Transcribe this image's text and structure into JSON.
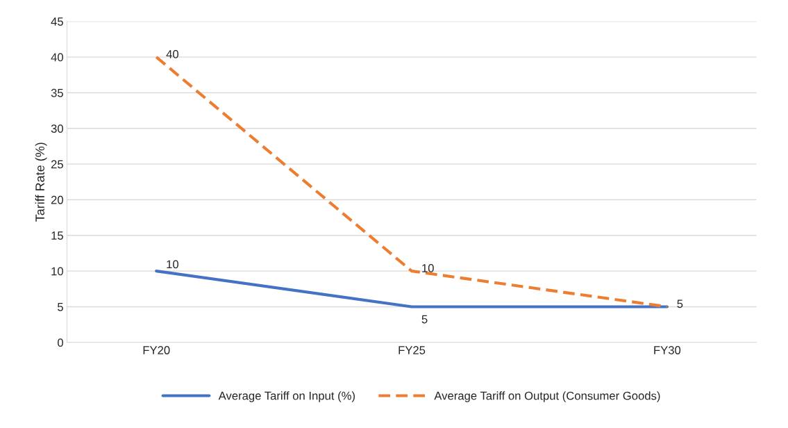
{
  "chart_data": {
    "type": "line",
    "ylabel": "Tariff Rate (%)",
    "categories": [
      "FY20",
      "FY25",
      "FY30"
    ],
    "series": [
      {
        "name": "Average Tariff on Input (%)",
        "color": "#4472c4",
        "line_style": "solid",
        "values": [
          10,
          5,
          5
        ],
        "value_labels": [
          "10",
          "5",
          null
        ]
      },
      {
        "name": "Average Tariff on Output (Consumer Goods)",
        "color": "#ed7d31",
        "line_style": "dashed",
        "values": [
          40,
          10,
          5
        ],
        "value_labels": [
          "40",
          "10",
          "5"
        ]
      }
    ],
    "ylim": [
      0,
      45
    ],
    "yticks": [
      0,
      5,
      10,
      15,
      20,
      25,
      30,
      35,
      40,
      45
    ],
    "grid": "y",
    "legend": "bottom",
    "marker": "none"
  }
}
